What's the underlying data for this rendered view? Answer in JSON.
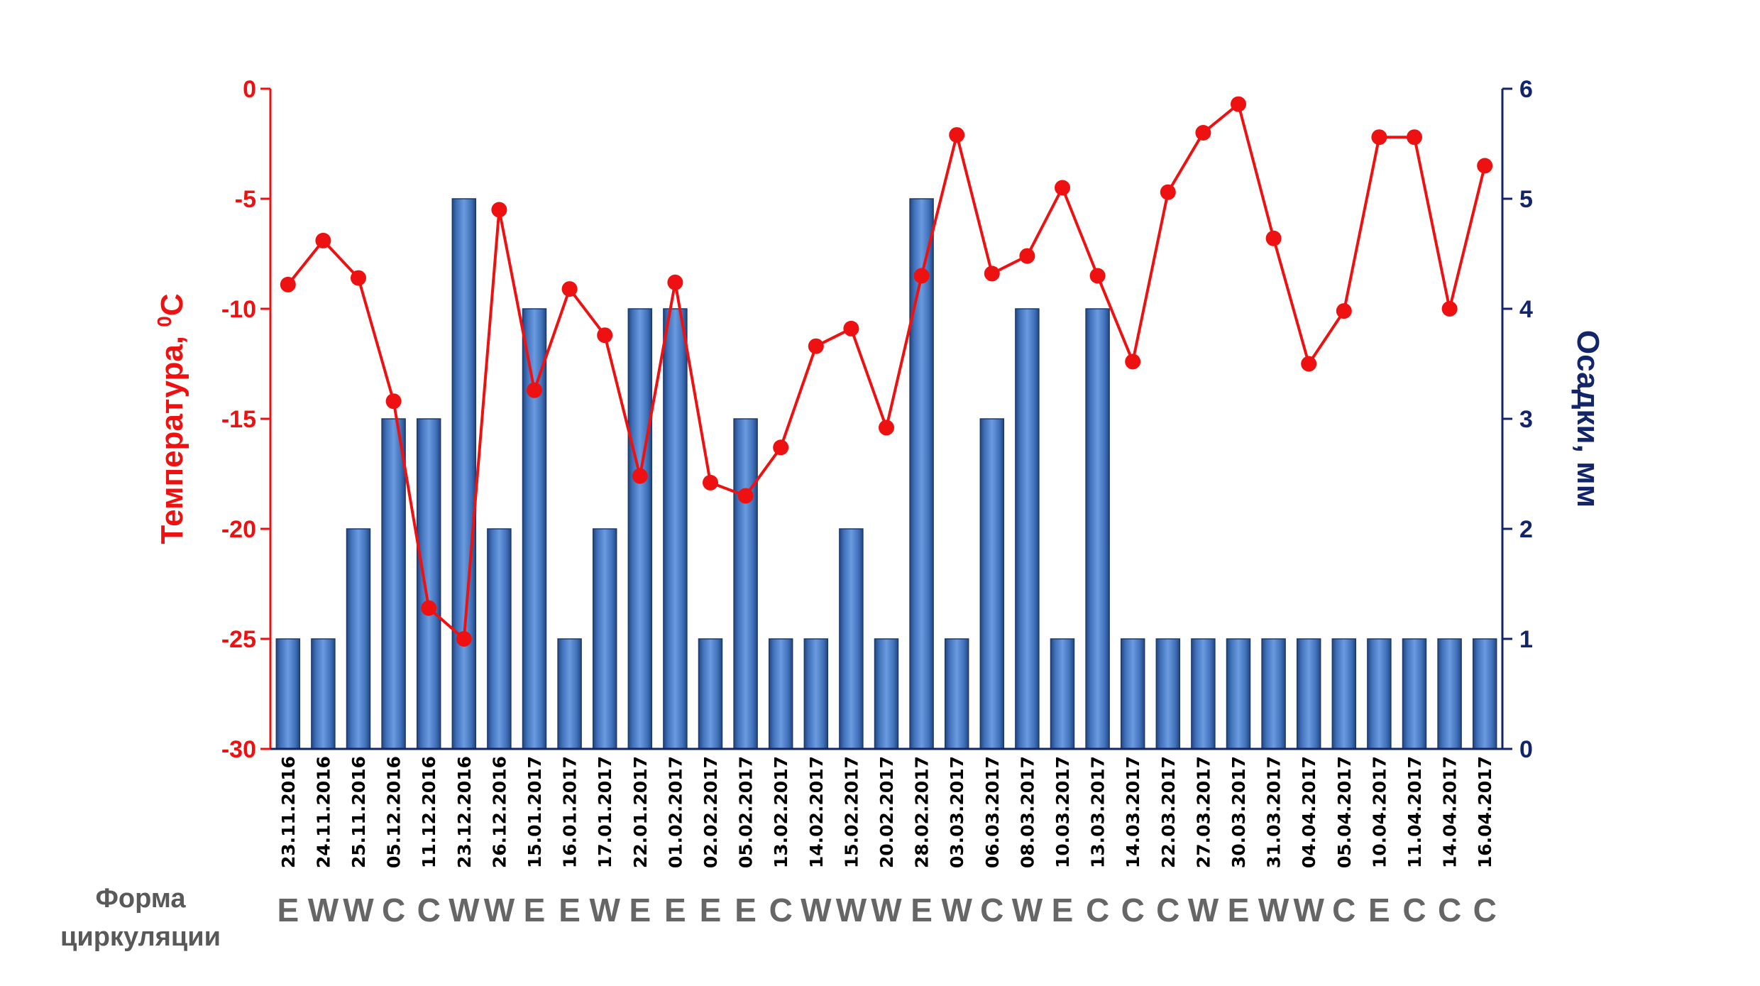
{
  "colors": {
    "temperature": "#ee1111",
    "precipitation_axis": "#12246a",
    "bar_fill": "#4a7ec9",
    "circulation_text": "#666666"
  },
  "chart_data": {
    "type": "bar",
    "categories": [
      "23.11.2016",
      "24.11.2016",
      "25.11.2016",
      "05.12.2016",
      "11.12.2016",
      "23.12.2016",
      "26.12.2016",
      "15.01.2017",
      "16.01.2017",
      "17.01.2017",
      "22.01.2017",
      "01.02.2017",
      "02.02.2017",
      "05.02.2017",
      "13.02.2017",
      "14.02.2017",
      "15.02.2017",
      "20.02.2017",
      "28.02.2017",
      "03.03.2017",
      "06.03.2017",
      "08.03.2017",
      "10.03.2017",
      "13.03.2017",
      "14.03.2017",
      "22.03.2017",
      "27.03.2017",
      "30.03.2017",
      "31.03.2017",
      "04.04.2017",
      "05.04.2017",
      "10.04.2017",
      "11.04.2017",
      "14.04.2017",
      "16.04.2017"
    ],
    "series": [
      {
        "type": "bar",
        "axis": "right",
        "values": [
          1,
          1,
          2,
          3,
          3,
          5,
          2,
          4,
          1,
          2,
          4,
          4,
          1,
          3,
          1,
          1,
          2,
          1,
          5,
          1,
          3,
          4,
          1,
          4,
          1,
          1,
          1,
          1,
          1,
          1,
          1,
          1,
          1,
          1,
          1
        ]
      },
      {
        "type": "line",
        "axis": "left",
        "values": [
          -8.9,
          -6.9,
          -8.6,
          -14.2,
          -23.6,
          -25.0,
          -5.5,
          -13.7,
          -9.1,
          -11.2,
          -17.6,
          -8.8,
          -17.9,
          -18.5,
          -16.3,
          -11.7,
          -10.9,
          -15.4,
          -8.5,
          -2.1,
          -8.4,
          -7.6,
          -4.5,
          -8.5,
          -12.4,
          -4.7,
          -2.0,
          -0.7,
          -6.8,
          -12.5,
          -10.1,
          -2.2,
          -2.2,
          -10.0,
          -3.5
        ]
      }
    ],
    "circulation_label_line1": "Форма",
    "circulation_label_line2": "циркуляции",
    "circulation": [
      "E",
      "W",
      "W",
      "C",
      "C",
      "W",
      "W",
      "E",
      "E",
      "W",
      "E",
      "E",
      "E",
      "E",
      "C",
      "W",
      "W",
      "W",
      "E",
      "W",
      "C",
      "W",
      "E",
      "C",
      "C",
      "C",
      "W",
      "E",
      "W",
      "W",
      "C",
      "E",
      "C",
      "C",
      "C"
    ],
    "y_left": {
      "label": "Температура,",
      "label_sup": "0",
      "label_unit": "С",
      "ylim": [
        -30,
        0
      ],
      "ticks": [
        "0",
        "-5",
        "-10",
        "-15",
        "-20",
        "-25",
        "-30"
      ]
    },
    "y_right": {
      "label": "Осадки, мм",
      "ylim": [
        0,
        6
      ],
      "ticks": [
        "0",
        "1",
        "2",
        "3",
        "4",
        "5",
        "6"
      ]
    }
  }
}
